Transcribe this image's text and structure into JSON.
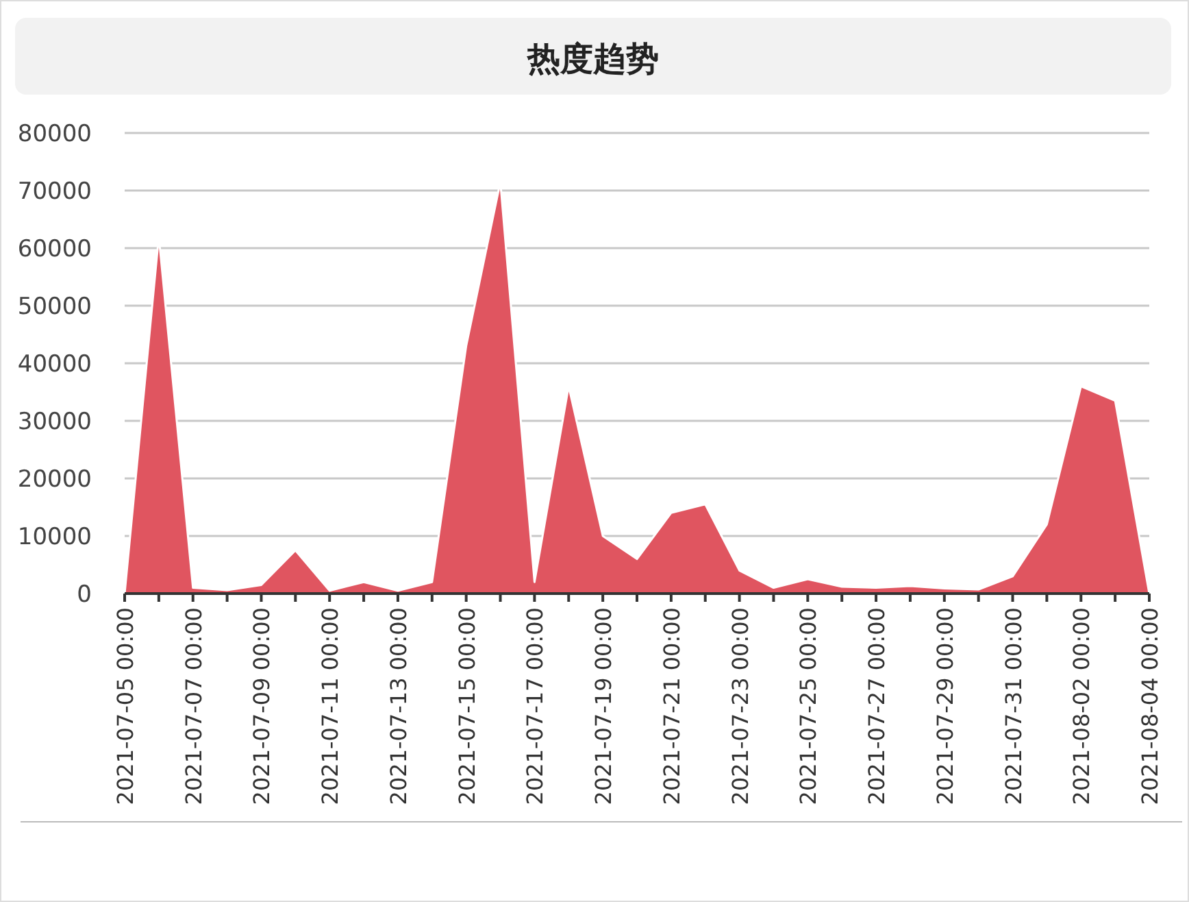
{
  "chart_data": {
    "type": "area",
    "title": "热度趋势",
    "categories": [
      "2021-07-05 00:00",
      null,
      "2021-07-07 00:00",
      null,
      "2021-07-09 00:00",
      null,
      "2021-07-11 00:00",
      null,
      "2021-07-13 00:00",
      null,
      "2021-07-15 00:00",
      null,
      "2021-07-17 00:00",
      null,
      "2021-07-19 00:00",
      null,
      "2021-07-21 00:00",
      null,
      "2021-07-23 00:00",
      null,
      "2021-07-25 00:00",
      null,
      "2021-07-27 00:00",
      null,
      "2021-07-29 00:00",
      null,
      "2021-07-31 00:00",
      null,
      "2021-08-02 00:00",
      null,
      "2021-08-04 00:00"
    ],
    "values": [
      0,
      62000,
      1000,
      600,
      1500,
      7500,
      500,
      2000,
      500,
      2000,
      43000,
      71500,
      2000,
      36000,
      10000,
      6000,
      14000,
      15500,
      4000,
      1000,
      2500,
      1200,
      1000,
      1300,
      900,
      700,
      3000,
      12000,
      36000,
      33500,
      0
    ],
    "color": "#e05560",
    "ylim": [
      0,
      80000
    ],
    "yticks": [
      0,
      10000,
      20000,
      30000,
      40000,
      50000,
      60000,
      70000,
      80000
    ],
    "grid": "y"
  }
}
